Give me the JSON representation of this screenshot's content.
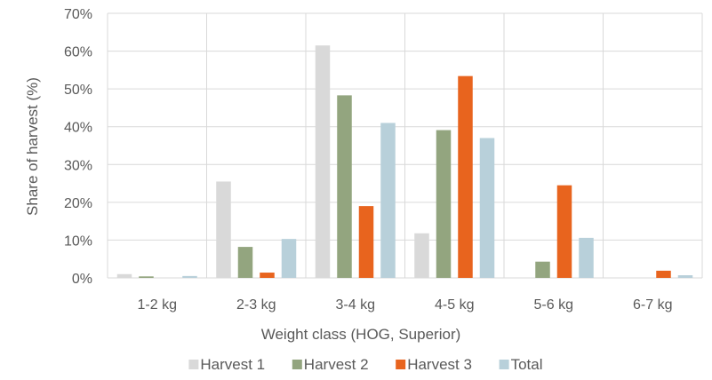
{
  "chart_data": {
    "type": "bar",
    "categories": [
      "1-2 kg",
      "2-3 kg",
      "3-4 kg",
      "4-5 kg",
      "5-6 kg",
      "6-7 kg"
    ],
    "series": [
      {
        "name": "Harvest 1",
        "color": "#d9d9d9",
        "values": [
          1.0,
          25.5,
          61.5,
          11.8,
          0,
          0
        ]
      },
      {
        "name": "Harvest 2",
        "color": "#93a57f",
        "values": [
          0.4,
          8.2,
          48.3,
          39.1,
          4.3,
          0
        ]
      },
      {
        "name": "Harvest 3",
        "color": "#e8641e",
        "values": [
          0,
          1.4,
          19.0,
          53.4,
          24.5,
          1.9
        ]
      },
      {
        "name": "Total",
        "color": "#b8d0da",
        "values": [
          0.5,
          10.3,
          41.0,
          37.0,
          10.6,
          0.7
        ]
      }
    ],
    "xlabel": "Weight class (HOG, Superior)",
    "ylabel": "Share of harvest (%)",
    "ylim": [
      0,
      70
    ],
    "yticks": [
      "0%",
      "10%",
      "20%",
      "30%",
      "40%",
      "50%",
      "60%",
      "70%"
    ],
    "grid": true,
    "legend_position": "bottom"
  }
}
